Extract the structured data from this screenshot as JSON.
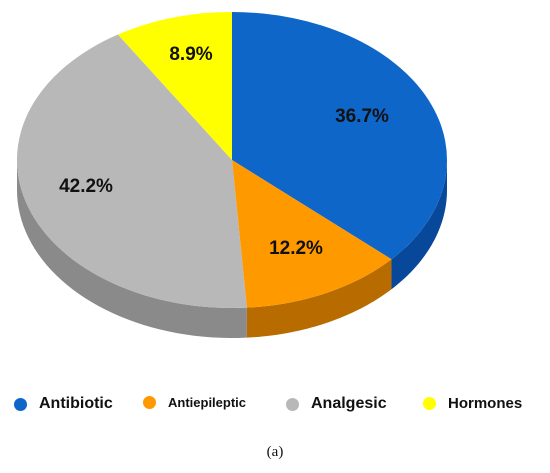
{
  "chart_data": {
    "type": "pie",
    "style": "3d",
    "categories": [
      "Antibiotic",
      "Antiepileptic",
      "Analgesic",
      "Hormones"
    ],
    "values": [
      36.7,
      12.2,
      42.2,
      8.9
    ],
    "labels": [
      "36.7%",
      "12.2%",
      "42.2%",
      "8.9%"
    ],
    "colors": [
      "#0F66C9",
      "#FF9900",
      "#B8B8B8",
      "#FFFF00"
    ],
    "side_colors": [
      "#07489A",
      "#B86C00",
      "#8A8A8A",
      "#C8C800"
    ],
    "legend_position": "bottom"
  },
  "legend": {
    "items": [
      {
        "label": "Antibiotic",
        "color": "#0F66C9"
      },
      {
        "label": "Antiepileptic",
        "color": "#FF9900"
      },
      {
        "label": "Analgesic",
        "color": "#B8B8B8"
      },
      {
        "label": "Hormones",
        "color": "#FFFF00"
      }
    ]
  },
  "caption": "(a)"
}
